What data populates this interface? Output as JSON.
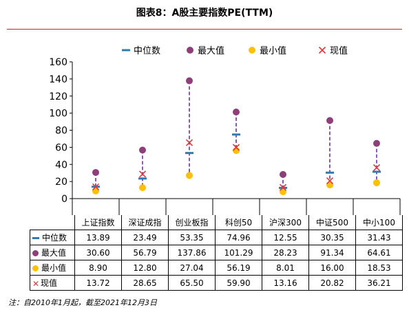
{
  "page": {
    "title": "图表8：A股主要指数PE(TTM)",
    "footnote": "注：自2010年1月起，截至2021年12月3日"
  },
  "chart_data": {
    "type": "scatter",
    "categories": [
      "上证指数",
      "深证成指",
      "创业板指",
      "科创50",
      "沪深300",
      "中证500",
      "中小100"
    ],
    "series": [
      {
        "name": "中位数",
        "values": [
          13.89,
          23.49,
          53.35,
          74.96,
          12.55,
          30.35,
          31.43
        ],
        "color": "#2e7bb4",
        "marker": "dash"
      },
      {
        "name": "最大值",
        "values": [
          30.6,
          56.79,
          137.86,
          101.29,
          28.23,
          91.34,
          64.61
        ],
        "color": "#8e3f7a",
        "marker": "circle"
      },
      {
        "name": "最小值",
        "values": [
          8.9,
          12.8,
          27.04,
          56.19,
          8.01,
          16.0,
          18.53
        ],
        "color": "#ffc000",
        "marker": "circle"
      },
      {
        "name": "现值",
        "values": [
          13.72,
          28.65,
          65.5,
          59.9,
          13.16,
          20.82,
          36.21
        ],
        "color": "#e0373a",
        "marker": "x"
      }
    ],
    "table_values": [
      [
        "13.89",
        "23.49",
        "53.35",
        "74.96",
        "12.55",
        "30.35",
        "31.43"
      ],
      [
        "30.60",
        "56.79",
        "137.86",
        "101.29",
        "28.23",
        "91.34",
        "64.61"
      ],
      [
        "8.90",
        "12.80",
        "27.04",
        "56.19",
        "8.01",
        "16.00",
        "18.53"
      ],
      [
        "13.72",
        "28.65",
        "65.50",
        "59.90",
        "13.16",
        "20.82",
        "36.21"
      ]
    ],
    "y_ticks": [
      "0",
      "20",
      "40",
      "60",
      "80",
      "100",
      "120",
      "140",
      "160"
    ],
    "ylim": [
      0,
      160
    ],
    "range_line_color": "#7030a0",
    "legend_position": "top",
    "grid": false
  }
}
